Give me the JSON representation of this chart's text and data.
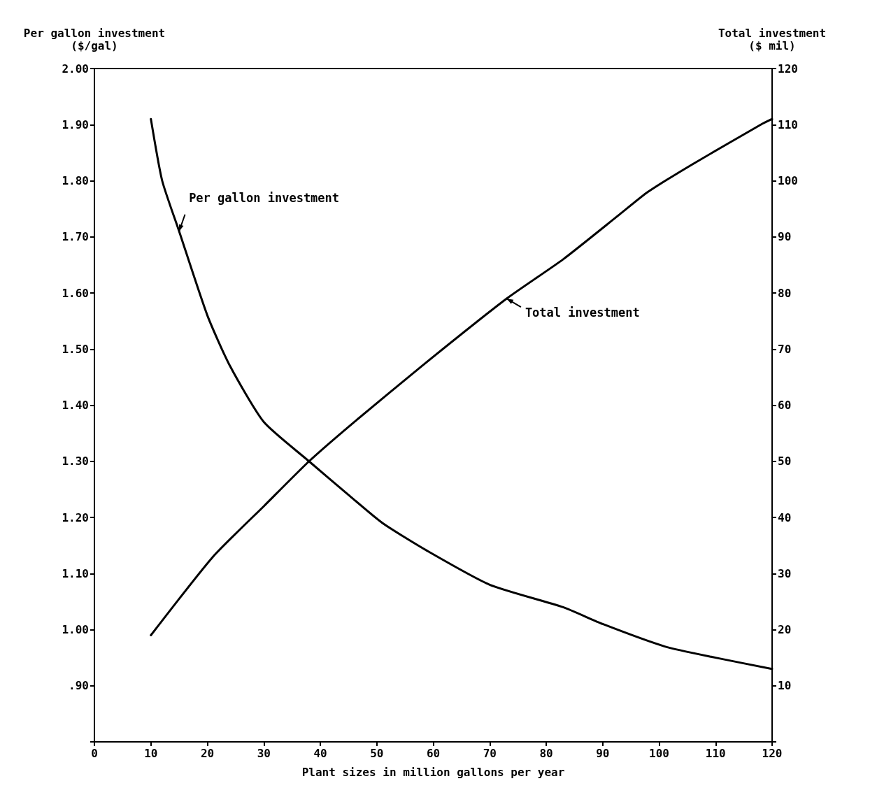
{
  "chart_data": {
    "type": "line",
    "xlabel": "Plant sizes in million gallons per year",
    "ylabel": "Per gallon investment\n($/gal)",
    "y2label": "Total investment\n($ mil)",
    "xlim": [
      0,
      120
    ],
    "xticks": [
      0,
      10,
      20,
      30,
      40,
      50,
      60,
      70,
      80,
      90,
      100,
      110,
      120
    ],
    "ylim": [
      0.8,
      2.0
    ],
    "yticks": [
      {
        "value": 0.8,
        "label": null
      },
      {
        "value": 0.9,
        "label": ".90"
      },
      {
        "value": 1.0,
        "label": "1.00"
      },
      {
        "value": 1.1,
        "label": "1.10"
      },
      {
        "value": 1.2,
        "label": "1.20"
      },
      {
        "value": 1.3,
        "label": "1.30"
      },
      {
        "value": 1.4,
        "label": "1.40"
      },
      {
        "value": 1.5,
        "label": "1.50"
      },
      {
        "value": 1.6,
        "label": "1.60"
      },
      {
        "value": 1.7,
        "label": "1.70"
      },
      {
        "value": 1.8,
        "label": "1.80"
      },
      {
        "value": 1.9,
        "label": "1.90"
      },
      {
        "value": 2.0,
        "label": "2.00"
      }
    ],
    "y2lim": [
      0,
      120
    ],
    "y2ticks": [
      {
        "value": 0,
        "label": null
      },
      10,
      20,
      30,
      40,
      50,
      60,
      70,
      80,
      90,
      100,
      110,
      120
    ],
    "grid": false,
    "marker": "none",
    "line_style": "solid",
    "annotations": [
      {
        "text": "Per gallon investment",
        "x": 15,
        "y": 1.71
      },
      {
        "text": "Total investment",
        "x": 73,
        "y": 1.59
      }
    ],
    "series": [
      {
        "color": "#000000",
        "x": [
          10,
          12,
          15,
          20,
          24,
          30,
          38,
          45,
          51,
          59,
          70,
          83,
          90,
          101,
          110,
          120
        ],
        "values": [
          1.91,
          1.8,
          1.71,
          1.56,
          1.47,
          1.37,
          1.3,
          1.24,
          1.19,
          1.14,
          1.08,
          1.04,
          1.01,
          0.97,
          0.95,
          0.93
        ]
      },
      {
        "color": "#000000",
        "axis": "y2",
        "x": [
          10,
          21,
          30,
          38,
          46,
          58,
          73,
          83,
          93,
          98,
          106,
          118,
          120
        ],
        "values": [
          19,
          33,
          42,
          50,
          57,
          67,
          79,
          86,
          94,
          98,
          103,
          110,
          111
        ]
      }
    ]
  }
}
